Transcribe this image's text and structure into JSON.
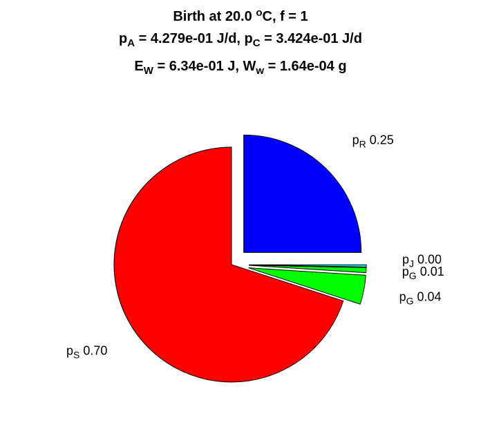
{
  "chart_data": {
    "type": "pie",
    "title_lines": [
      {
        "parts": [
          {
            "t": "Birth at 20.0 "
          },
          {
            "t": "o",
            "sup": true
          },
          {
            "t": "C, f = 1"
          }
        ]
      },
      {
        "parts": [
          {
            "t": "p"
          },
          {
            "t": "A",
            "sub": true
          },
          {
            "t": " = 4.279e-01 J/d, p"
          },
          {
            "t": "C",
            "sub": true
          },
          {
            "t": " = 3.424e-01 J/d"
          }
        ]
      },
      {
        "parts": [
          {
            "t": "E"
          },
          {
            "t": "W",
            "sub": true
          },
          {
            "t": " = 6.34e-01 J, W"
          },
          {
            "t": "w",
            "sub": true
          },
          {
            "t": " = 1.64e-04 g"
          }
        ]
      }
    ],
    "slices": [
      {
        "name": "p_R",
        "symbol": "p",
        "subscript": "R",
        "value_label": "0.25",
        "value": 0.25,
        "color": "#0000ff",
        "exploded": true
      },
      {
        "name": "p_J",
        "symbol": "p",
        "subscript": "J",
        "value_label": "0.00",
        "value": 0.003,
        "color": "#00ffff",
        "exploded": true
      },
      {
        "name": "p_G_small",
        "symbol": "p",
        "subscript": "G",
        "value_label": "0.01",
        "value": 0.007,
        "color": "#00ff00",
        "exploded": true
      },
      {
        "name": "p_G",
        "symbol": "p",
        "subscript": "G",
        "value_label": "0.04",
        "value": 0.04,
        "color": "#00ff00",
        "exploded": true
      },
      {
        "name": "p_S",
        "symbol": "p",
        "subscript": "S",
        "value_label": "0.70",
        "value": 0.7,
        "color": "#ff0000",
        "exploded": false
      }
    ],
    "legend": "none"
  }
}
